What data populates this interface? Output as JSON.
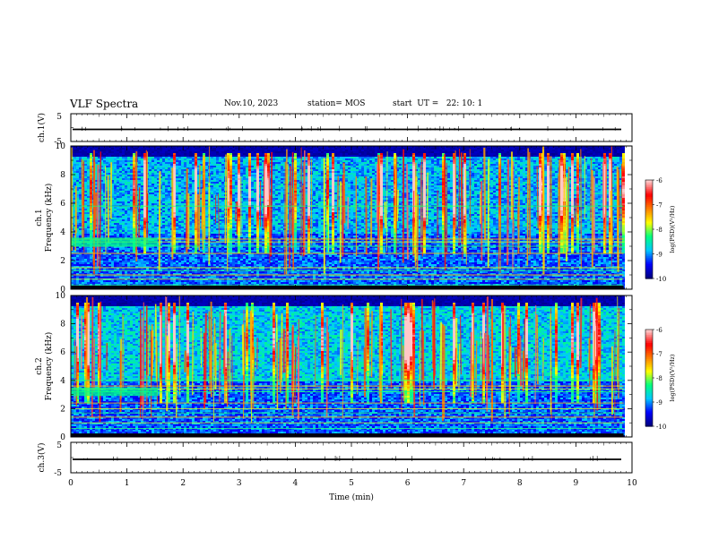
{
  "header": {
    "title": "VLF Spectra",
    "date": "Nov.10, 2023",
    "station": "station= MOS",
    "start_ut": "start  UT =   22: 10: 1"
  },
  "chart_data": [
    {
      "id": "ch1-waveform",
      "type": "line",
      "ylabel": "ch.1(V)",
      "ylim": [
        -5,
        5
      ],
      "yticks": [
        "5",
        "-5"
      ],
      "xlim": [
        0,
        10
      ],
      "trace_level": 0,
      "color": "#000000"
    },
    {
      "id": "ch1-spectrogram",
      "type": "heatmap",
      "ylabel": "ch.1\nFrequency (kHz)",
      "ylabel_lines": [
        "ch.1",
        "Frequency (kHz)"
      ],
      "ylim": [
        0,
        10
      ],
      "yticks": [
        "0",
        "2",
        "4",
        "6",
        "8",
        "10"
      ],
      "xlim": [
        0,
        10
      ],
      "colorbar": {
        "label": "log(PSD)(V²/Hz)",
        "range": [
          -10,
          -6
        ],
        "ticks": [
          "-6",
          "-7",
          "-8",
          "-9",
          "-10"
        ],
        "colors": [
          "#000080",
          "#0000ff",
          "#00c8ff",
          "#00ff80",
          "#ffff00",
          "#ff8000",
          "#ff0000",
          "#ffc8c8"
        ]
      },
      "persistent_lines_khz": [
        0.3,
        0.7,
        1.0,
        1.3,
        1.5,
        2.5,
        3.0,
        3.3,
        3.5,
        5.8
      ],
      "data_end_min": 9.85
    },
    {
      "id": "ch2-spectrogram",
      "type": "heatmap",
      "ylabel": "ch.2\nFrequency (kHz)",
      "ylabel_lines": [
        "ch.2",
        "Frequency (kHz)"
      ],
      "ylim": [
        0,
        10
      ],
      "yticks": [
        "0",
        "2",
        "4",
        "6",
        "8",
        "10"
      ],
      "xlim": [
        0,
        10
      ],
      "colorbar": {
        "label": "log(PSD)(V²/Hz)",
        "range": [
          -10,
          -6
        ],
        "ticks": [
          "-6",
          "-7",
          "-8",
          "-9",
          "-10"
        ],
        "colors": [
          "#000080",
          "#0000ff",
          "#00c8ff",
          "#00ff80",
          "#ffff00",
          "#ff8000",
          "#ff0000",
          "#ffc8c8"
        ]
      },
      "persistent_lines_khz": [
        0.6,
        1.0,
        1.4,
        1.7,
        2.0,
        2.4,
        3.2,
        3.4,
        3.6,
        4.0
      ],
      "data_end_min": 9.85
    },
    {
      "id": "ch3-waveform",
      "type": "line",
      "ylabel": "ch.3(V)",
      "ylim": [
        -5,
        5
      ],
      "yticks": [
        "5",
        "-5"
      ],
      "xlim": [
        0,
        10
      ],
      "trace_level": 0,
      "color": "#000000"
    }
  ],
  "x_axis": {
    "label": "Time  (min)",
    "ticks": [
      "0",
      "1",
      "2",
      "3",
      "4",
      "5",
      "6",
      "7",
      "8",
      "9",
      "10"
    ],
    "range": [
      0,
      10
    ]
  }
}
